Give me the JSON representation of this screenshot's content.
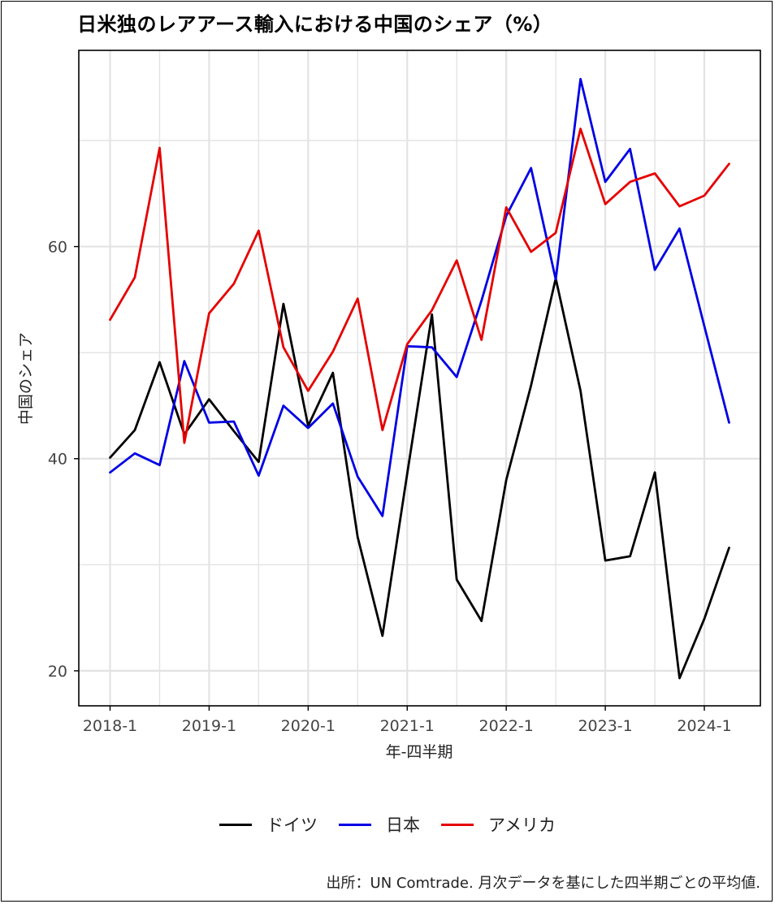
{
  "title": "日米独のレアアース輸入における中国のシェア（%）",
  "caption": "出所：UN Comtrade. 月次データを基にした四半期ごとの平均値.",
  "chart_data": {
    "type": "line",
    "title": "日米独のレアアース輸入における中国のシェア（%）",
    "xlabel": "年-四半期",
    "ylabel": "中国のシェア",
    "x_ticks": [
      "2018-1",
      "2019-1",
      "2020-1",
      "2021-1",
      "2022-1",
      "2023-1",
      "2024-1"
    ],
    "y_ticks": [
      20,
      40,
      60
    ],
    "ylim": [
      16.7,
      78.5
    ],
    "grid": true,
    "legend_position": "bottom",
    "categories": [
      "2018-1",
      "2018-2",
      "2018-3",
      "2018-4",
      "2019-1",
      "2019-2",
      "2019-3",
      "2019-4",
      "2020-1",
      "2020-2",
      "2020-3",
      "2020-4",
      "2021-1",
      "2021-2",
      "2021-3",
      "2021-4",
      "2022-1",
      "2022-2",
      "2022-3",
      "2022-4",
      "2023-1",
      "2023-2",
      "2023-3",
      "2023-4",
      "2024-1",
      "2024-2"
    ],
    "series": [
      {
        "name": "ドイツ",
        "color": "#000000",
        "values": [
          40.1,
          42.7,
          49.1,
          42.3,
          45.6,
          42.6,
          39.7,
          54.6,
          43.1,
          48.1,
          32.6,
          23.3,
          38.6,
          53.6,
          28.6,
          24.7,
          38.0,
          46.9,
          57.0,
          46.4,
          30.4,
          30.8,
          38.7,
          19.3,
          24.9,
          31.6
        ]
      },
      {
        "name": "日本",
        "color": "#0000e6",
        "values": [
          38.7,
          40.5,
          39.4,
          49.2,
          43.4,
          43.5,
          38.4,
          45.0,
          42.9,
          45.2,
          38.3,
          34.6,
          50.6,
          50.5,
          47.7,
          54.9,
          62.9,
          67.4,
          56.9,
          75.8,
          66.1,
          69.2,
          57.8,
          61.7,
          52.5,
          43.4
        ]
      },
      {
        "name": "アメリカ",
        "color": "#e60000",
        "values": [
          53.1,
          57.1,
          69.3,
          41.5,
          53.7,
          56.5,
          61.5,
          50.5,
          46.4,
          50.1,
          55.1,
          42.7,
          50.8,
          54.0,
          58.7,
          51.2,
          63.7,
          59.5,
          61.3,
          71.1,
          64.0,
          66.1,
          66.9,
          63.8,
          64.8,
          67.8
        ]
      }
    ]
  },
  "colors": {
    "grid": "#e3e3e3",
    "panel_border": "#000000",
    "text": "#333333"
  }
}
